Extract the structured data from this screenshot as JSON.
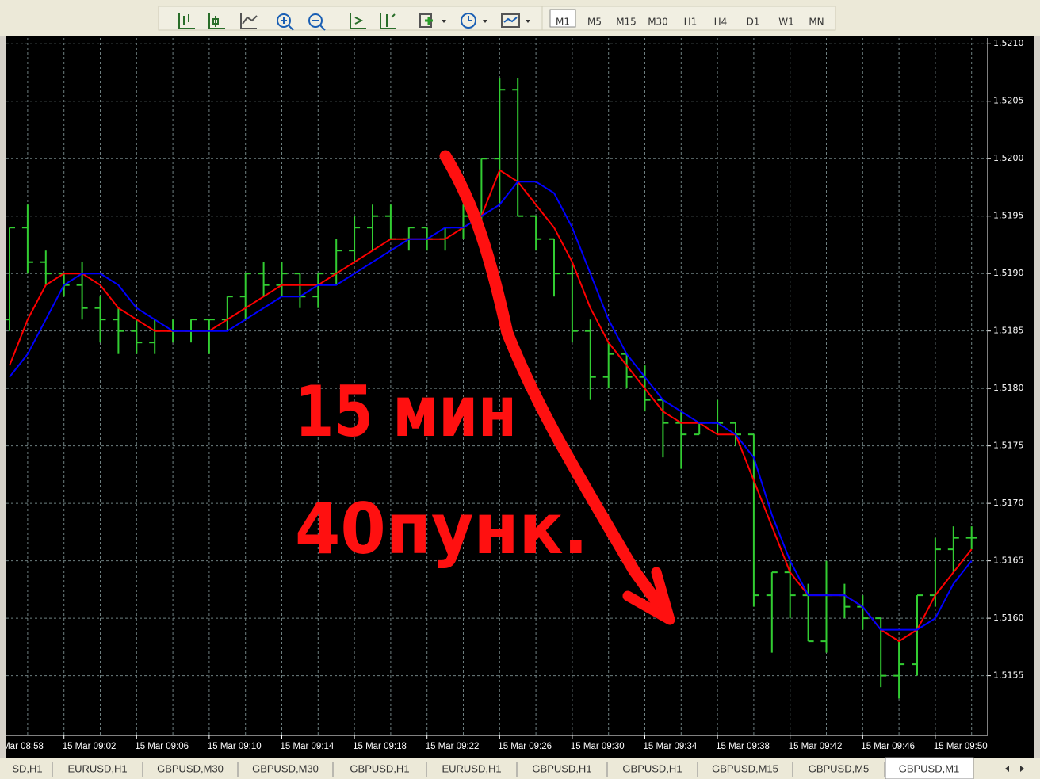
{
  "toolbar": {
    "timeframes": [
      "M1",
      "M5",
      "M15",
      "M30",
      "H1",
      "H4",
      "D1",
      "W1",
      "MN"
    ],
    "active": "M1"
  },
  "tabs": [
    "SD,H1",
    "EURUSD,H1",
    "GBPUSD,M30",
    "GBPUSD,M30",
    "GBPUSD,H1",
    "EURUSD,H1",
    "GBPUSD,H1",
    "GBPUSD,H1",
    "GBPUSD,M15",
    "GBPUSD,M5",
    "GBPUSD,M1"
  ],
  "active_tab": "GBPUSD,M1",
  "chart_data": {
    "type": "ohlc",
    "bar_color": "#32cd32",
    "grid": true,
    "categories": [
      "15 Mar 08:58",
      null,
      null,
      null,
      "15 Mar 09:02",
      null,
      null,
      null,
      "15 Mar 09:06",
      null,
      null,
      null,
      "15 Mar 09:10",
      null,
      null,
      null,
      "15 Mar 09:14",
      null,
      null,
      null,
      "15 Mar 09:18",
      null,
      null,
      null,
      "15 Mar 09:22",
      null,
      null,
      null,
      "15 Mar 09:26",
      null,
      null,
      null,
      "15 Mar 09:30",
      null,
      null,
      null,
      "15 Mar 09:34",
      null,
      null,
      null,
      "15 Mar 09:38",
      null,
      null,
      null,
      "15 Mar 09:42",
      null,
      null,
      null,
      "15 Mar 09:46",
      null,
      null,
      null,
      "15 Mar 09:50",
      null,
      null
    ],
    "open": [
      null,
      1.5186,
      1.5194,
      1.5191,
      1.519,
      1.5189,
      1.5187,
      1.5186,
      1.5185,
      1.5184,
      1.5185,
      1.5185,
      1.5186,
      1.5186,
      1.5188,
      1.519,
      1.5189,
      1.519,
      1.5188,
      1.519,
      1.5192,
      1.5194,
      1.5195,
      1.5193,
      1.5194,
      1.5193,
      1.5194,
      1.5195,
      1.52,
      1.5206,
      1.5195,
      1.5193,
      1.519,
      1.5185,
      1.5181,
      1.5183,
      1.5181,
      1.5179,
      1.5177,
      1.5176,
      1.5177,
      1.5177,
      1.5176,
      1.5162,
      1.5164,
      1.5162,
      1.5158,
      1.5162,
      1.5161,
      1.516,
      1.5155,
      1.5156,
      1.5162,
      1.5166,
      1.5167
    ],
    "high": [
      null,
      1.5194,
      1.5196,
      1.5192,
      1.519,
      1.5191,
      1.5188,
      1.5187,
      1.5186,
      1.5186,
      1.5186,
      1.5186,
      1.5186,
      1.5188,
      1.519,
      1.5191,
      1.5191,
      1.519,
      1.519,
      1.5193,
      1.5195,
      1.5196,
      1.5196,
      1.5194,
      1.5194,
      1.5194,
      1.5196,
      1.52,
      1.5207,
      1.5207,
      1.5195,
      1.5193,
      1.5191,
      1.5186,
      1.5184,
      1.5183,
      1.5182,
      1.5179,
      1.5178,
      1.5177,
      1.5179,
      1.5177,
      1.5176,
      1.5164,
      1.5165,
      1.5163,
      1.5165,
      1.5163,
      1.5162,
      1.516,
      1.5158,
      1.5162,
      1.5167,
      1.5168,
      1.5168
    ],
    "low": [
      null,
      1.5185,
      1.519,
      1.5189,
      1.5188,
      1.5186,
      1.5184,
      1.5183,
      1.5183,
      1.5183,
      1.5184,
      1.5184,
      1.5183,
      1.5185,
      1.5186,
      1.5188,
      1.5188,
      1.5187,
      1.5187,
      1.5189,
      1.5191,
      1.5192,
      1.5193,
      1.5192,
      1.5192,
      1.5192,
      1.5193,
      1.5194,
      1.5196,
      1.5195,
      1.5192,
      1.5188,
      1.5184,
      1.5179,
      1.518,
      1.518,
      1.5178,
      1.5174,
      1.5173,
      1.5176,
      1.5176,
      1.5175,
      1.5161,
      1.5157,
      1.516,
      1.5158,
      1.5157,
      1.516,
      1.5159,
      1.5154,
      1.5153,
      1.5155,
      1.5161,
      1.5164,
      1.5166
    ],
    "close": [
      null,
      1.5194,
      1.5191,
      1.519,
      1.5189,
      1.5187,
      1.5186,
      1.5185,
      1.5184,
      1.5185,
      1.5185,
      1.5186,
      1.5186,
      1.5188,
      1.519,
      1.5189,
      1.519,
      1.5188,
      1.519,
      1.5192,
      1.5194,
      1.5195,
      1.5193,
      1.5194,
      1.5193,
      1.5194,
      1.5195,
      1.52,
      1.5206,
      1.5195,
      1.5193,
      1.519,
      1.5185,
      1.5181,
      1.5183,
      1.5181,
      1.5179,
      1.5177,
      1.5176,
      1.5177,
      1.5177,
      1.5176,
      1.5162,
      1.5164,
      1.5162,
      1.5158,
      1.5162,
      1.5161,
      1.516,
      1.5155,
      1.5156,
      1.5162,
      1.5166,
      1.5167,
      1.5167
    ],
    "series": [
      {
        "color": "#ff0000",
        "values": [
          null,
          1.5182,
          1.5186,
          1.5189,
          1.519,
          1.519,
          1.5189,
          1.5187,
          1.5186,
          1.5185,
          1.5185,
          1.5185,
          1.5185,
          1.5186,
          1.5187,
          1.5188,
          1.5189,
          1.5189,
          1.5189,
          1.519,
          1.5191,
          1.5192,
          1.5193,
          1.5193,
          1.5193,
          1.5193,
          1.5194,
          1.5195,
          1.5199,
          1.5198,
          1.5196,
          1.5194,
          1.5191,
          1.5187,
          1.5184,
          1.5182,
          1.518,
          1.5178,
          1.5177,
          1.5177,
          1.5176,
          1.5176,
          1.5172,
          1.5168,
          1.5164,
          1.5162,
          1.5162,
          1.5162,
          1.5161,
          1.5159,
          1.5158,
          1.5159,
          1.5162,
          1.5164,
          1.5166
        ]
      },
      {
        "color": "#0000ff",
        "values": [
          null,
          1.5181,
          1.5183,
          1.5186,
          1.5189,
          1.519,
          1.519,
          1.5189,
          1.5187,
          1.5186,
          1.5185,
          1.5185,
          1.5185,
          1.5185,
          1.5186,
          1.5187,
          1.5188,
          1.5188,
          1.5189,
          1.5189,
          1.519,
          1.5191,
          1.5192,
          1.5193,
          1.5193,
          1.5194,
          1.5194,
          1.5195,
          1.5196,
          1.5198,
          1.5198,
          1.5197,
          1.5194,
          1.519,
          1.5186,
          1.5183,
          1.5181,
          1.5179,
          1.5178,
          1.5177,
          1.5177,
          1.5176,
          1.5174,
          1.5169,
          1.5165,
          1.5162,
          1.5162,
          1.5162,
          1.5161,
          1.5159,
          1.5159,
          1.5159,
          1.516,
          1.5163,
          1.5165
        ]
      }
    ],
    "ylim": [
      1.51498,
      1.52105
    ],
    "yticks": [
      {
        "value": 1.5155,
        "label": "1.5155"
      },
      {
        "value": 1.516,
        "label": "1.5160"
      },
      {
        "value": 1.5165,
        "label": "1.5165"
      },
      {
        "value": 1.517,
        "label": "1.5170"
      },
      {
        "value": 1.5175,
        "label": "1.5175"
      },
      {
        "value": 1.518,
        "label": "1.5180"
      },
      {
        "value": 1.5185,
        "label": "1.5185"
      },
      {
        "value": 1.519,
        "label": "1.5190"
      },
      {
        "value": 1.5195,
        "label": "1.5195"
      },
      {
        "value": 1.52,
        "label": "1.5200"
      },
      {
        "value": 1.5205,
        "label": "1.5205"
      },
      {
        "value": 1.521,
        "label": "1.5210"
      }
    ],
    "annotations": [
      "15 мин",
      "40пунк."
    ]
  }
}
